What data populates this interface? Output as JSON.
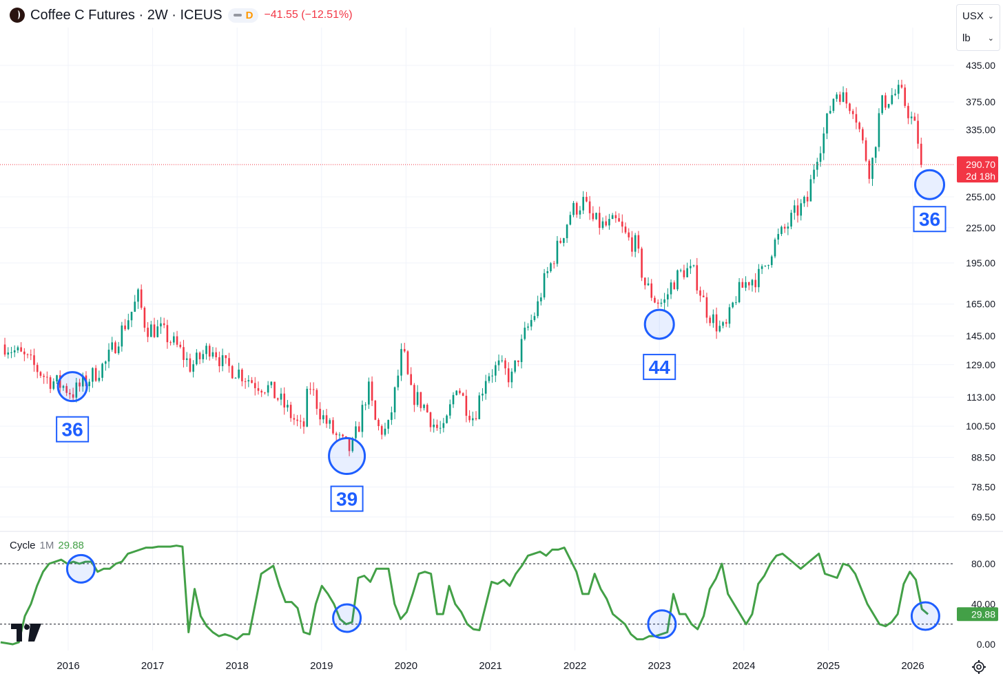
{
  "header": {
    "title": "Coffee C Futures · 2W · ICEUS",
    "interval_badge": "D",
    "change": "−41.55 (−12.51%)"
  },
  "units": {
    "currency": "USX",
    "unit": "lb"
  },
  "price_tag": {
    "price": "290.70",
    "countdown": "2d 18h"
  },
  "indicator": {
    "name": "Cycle",
    "timeframe": "1M",
    "value": "29.88"
  },
  "colors": {
    "up": "#089981",
    "down": "#f23645",
    "cycle_line": "#43a047",
    "marker": "#1e5eff",
    "price_tag": "#f23645"
  },
  "chart_data": [
    {
      "type": "candlestick",
      "title": "Coffee C Futures · 2W · ICEUS",
      "y_scale": "log",
      "y_ticks": [
        435.0,
        375.0,
        335.0,
        255.0,
        225.0,
        195.0,
        165.0,
        145.0,
        129.0,
        113.0,
        100.5,
        88.5,
        78.5,
        69.5
      ],
      "x_ticks": [
        "2016",
        "2017",
        "2018",
        "2019",
        "2020",
        "2021",
        "2022",
        "2023",
        "2024",
        "2025",
        "2026"
      ],
      "last_price": 290.7,
      "close_path": [
        [
          2015.25,
          140
        ],
        [
          2015.5,
          132
        ],
        [
          2015.75,
          122
        ],
        [
          2015.95,
          118
        ],
        [
          2016.05,
          115
        ],
        [
          2016.25,
          122
        ],
        [
          2016.45,
          130
        ],
        [
          2016.6,
          145
        ],
        [
          2016.75,
          160
        ],
        [
          2016.83,
          170
        ],
        [
          2016.92,
          150
        ],
        [
          2017.1,
          148
        ],
        [
          2017.3,
          138
        ],
        [
          2017.45,
          128
        ],
        [
          2017.55,
          132
        ],
        [
          2017.7,
          140
        ],
        [
          2017.85,
          128
        ],
        [
          2018.0,
          126
        ],
        [
          2018.2,
          120
        ],
        [
          2018.35,
          118
        ],
        [
          2018.5,
          112
        ],
        [
          2018.7,
          102
        ],
        [
          2018.78,
          98
        ],
        [
          2018.85,
          120
        ],
        [
          2019.0,
          105
        ],
        [
          2019.2,
          95
        ],
        [
          2019.35,
          91
        ],
        [
          2019.45,
          102
        ],
        [
          2019.55,
          118
        ],
        [
          2019.65,
          100
        ],
        [
          2019.78,
          98
        ],
        [
          2019.9,
          122
        ],
        [
          2019.96,
          138
        ],
        [
          2020.05,
          115
        ],
        [
          2020.2,
          110
        ],
        [
          2020.35,
          100
        ],
        [
          2020.45,
          98
        ],
        [
          2020.6,
          120
        ],
        [
          2020.7,
          110
        ],
        [
          2020.8,
          104
        ],
        [
          2020.95,
          124
        ],
        [
          2021.1,
          128
        ],
        [
          2021.25,
          122
        ],
        [
          2021.4,
          145
        ],
        [
          2021.55,
          162
        ],
        [
          2021.62,
          178
        ],
        [
          2021.75,
          200
        ],
        [
          2021.85,
          218
        ],
        [
          2021.95,
          240
        ],
        [
          2022.1,
          250
        ],
        [
          2022.2,
          232
        ],
        [
          2022.35,
          226
        ],
        [
          2022.5,
          230
        ],
        [
          2022.62,
          215
        ],
        [
          2022.72,
          210
        ],
        [
          2022.82,
          180
        ],
        [
          2022.95,
          168
        ],
        [
          2023.05,
          165
        ],
        [
          2023.15,
          180
        ],
        [
          2023.3,
          190
        ],
        [
          2023.42,
          186
        ],
        [
          2023.55,
          162
        ],
        [
          2023.7,
          150
        ],
        [
          2023.78,
          148
        ],
        [
          2023.9,
          170
        ],
        [
          2024.05,
          182
        ],
        [
          2024.2,
          185
        ],
        [
          2024.35,
          210
        ],
        [
          2024.5,
          225
        ],
        [
          2024.62,
          240
        ],
        [
          2024.75,
          250
        ],
        [
          2024.85,
          300
        ],
        [
          2024.95,
          330
        ],
        [
          2025.05,
          380
        ],
        [
          2025.12,
          395
        ],
        [
          2025.2,
          375
        ],
        [
          2025.3,
          370
        ],
        [
          2025.42,
          310
        ],
        [
          2025.5,
          280
        ],
        [
          2025.62,
          370
        ],
        [
          2025.75,
          385
        ],
        [
          2025.85,
          390
        ],
        [
          2025.95,
          360
        ],
        [
          2026.05,
          330
        ],
        [
          2026.1,
          290.7
        ]
      ],
      "annotations": [
        {
          "label": "36",
          "x": 2016.05,
          "y": 118
        },
        {
          "label": "39",
          "x": 2019.3,
          "y": 89
        },
        {
          "label": "44",
          "x": 2023.0,
          "y": 152
        },
        {
          "label": "36",
          "x": 2026.2,
          "y": 268
        }
      ]
    },
    {
      "type": "line",
      "title": "Cycle 1M",
      "series": [
        {
          "name": "Cycle 1M",
          "values": [
            2,
            1,
            0,
            2,
            28,
            40,
            58,
            72,
            80,
            82,
            84,
            80,
            82,
            80,
            82,
            82,
            72,
            75,
            75,
            80,
            82,
            90,
            92,
            94,
            96,
            96,
            97,
            97,
            97,
            98,
            97,
            12,
            55,
            28,
            18,
            12,
            8,
            10,
            8,
            5,
            10,
            10,
            40,
            70,
            74,
            78,
            58,
            42,
            42,
            36,
            12,
            10,
            40,
            58,
            50,
            40,
            25,
            20,
            22,
            66,
            68,
            62,
            75,
            75,
            75,
            40,
            25,
            32,
            50,
            70,
            72,
            70,
            30,
            30,
            58,
            40,
            32,
            20,
            15,
            14,
            38,
            62,
            60,
            64,
            58,
            70,
            78,
            88,
            90,
            92,
            88,
            94,
            94,
            96,
            84,
            72,
            50,
            50,
            70,
            55,
            45,
            30,
            25,
            20,
            10,
            5,
            5,
            8,
            8,
            10,
            12,
            50,
            30,
            30,
            20,
            15,
            28,
            55,
            65,
            80,
            50,
            40,
            30,
            20,
            30,
            60,
            68,
            80,
            88,
            90,
            85,
            80,
            75,
            80,
            85,
            90,
            70,
            68,
            66,
            80,
            78,
            70,
            55,
            40,
            30,
            20,
            18,
            22,
            30,
            60,
            72,
            64,
            35,
            29.88
          ]
        }
      ],
      "y_ticks": [
        80.0,
        40.0,
        0.0
      ],
      "levels": [
        80,
        20
      ],
      "last_value": 29.88,
      "x_range": [
        2015.2,
        2026.18
      ],
      "annotations": [
        {
          "x": 2016.15,
          "y": 75
        },
        {
          "x": 2019.3,
          "y": 26
        },
        {
          "x": 2023.03,
          "y": 20
        },
        {
          "x": 2026.15,
          "y": 28
        }
      ]
    }
  ]
}
